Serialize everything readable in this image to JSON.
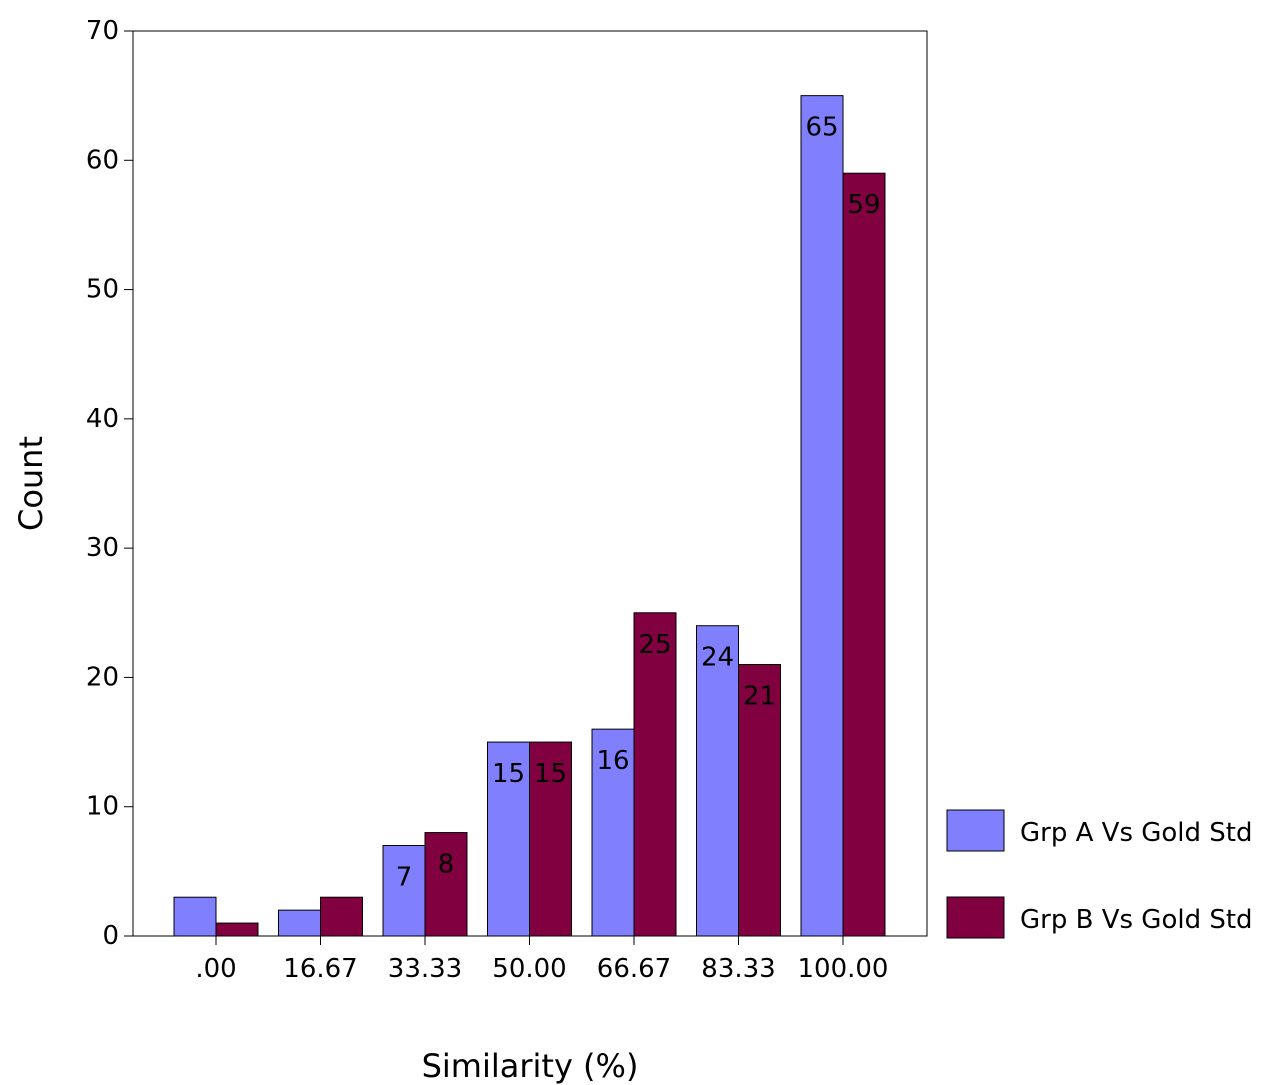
{
  "chart_data": {
    "type": "bar",
    "xlabel": "Similarity (%)",
    "ylabel": "Count",
    "ylim": [
      0,
      70
    ],
    "yticks": [
      0,
      10,
      20,
      30,
      40,
      50,
      60,
      70
    ],
    "categories": [
      ".00",
      "16.67",
      "33.33",
      "50.00",
      "66.67",
      "83.33",
      "100.00"
    ],
    "series": [
      {
        "name": "Grp A Vs Gold Std",
        "color": "#8080ff",
        "values": [
          3,
          2,
          7,
          15,
          16,
          24,
          65
        ],
        "labels": [
          "",
          "",
          "7",
          "15",
          "16",
          "24",
          "65"
        ]
      },
      {
        "name": "Grp B Vs Gold Std",
        "color": "#800040",
        "values": [
          1,
          3,
          8,
          15,
          25,
          21,
          59
        ],
        "labels": [
          "",
          "",
          "8",
          "15",
          "25",
          "21",
          "59"
        ]
      }
    ],
    "legend_position": "right",
    "grid": false
  }
}
